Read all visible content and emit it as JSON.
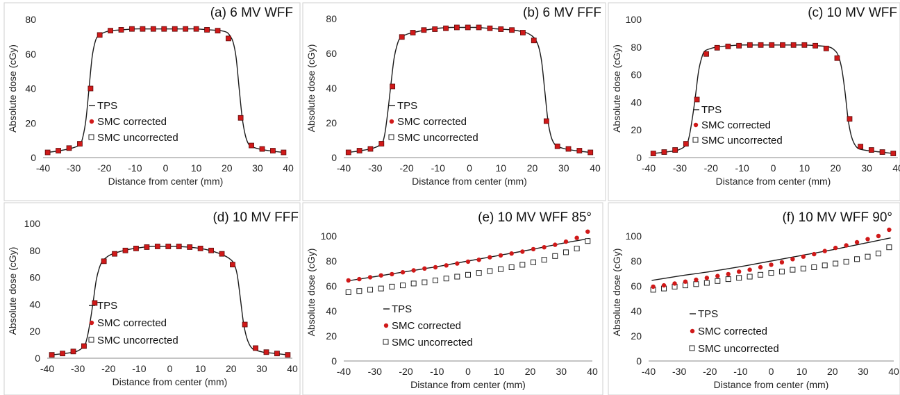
{
  "legend": {
    "entries": [
      {
        "label": "TPS",
        "marker": "line"
      },
      {
        "label": "SMC corrected",
        "marker": "circle"
      },
      {
        "label": "SMC uncorrected",
        "marker": "open-square"
      }
    ]
  },
  "colors": {
    "tps": "#1a1a1a",
    "corrected_fill": "#d01919",
    "corrected_edge": "#5a0a0a",
    "uncorrected_edge": "#222222",
    "panel_border": "#cfcfcf"
  },
  "chart_data": [
    {
      "type": "line",
      "title": "(a) 6 MV WFF",
      "xlabel": "Distance from center (mm)",
      "ylabel": "Absolute dose (cGy)",
      "xlim": [
        -40,
        40
      ],
      "ylim": [
        0,
        80
      ],
      "xticks": [
        -40,
        -30,
        -20,
        -10,
        0,
        10,
        20,
        30,
        40
      ],
      "yticks": [
        0,
        20,
        40,
        60,
        80
      ],
      "corrected_marker": "square",
      "series": [
        {
          "name": "TPS",
          "x": [
            -38.5,
            -34.5,
            -30.5,
            -28,
            -27,
            -26,
            -25,
            -24,
            -23,
            -22,
            -20,
            -18,
            -14,
            -10,
            -6,
            -2,
            2,
            6,
            10,
            14,
            18,
            20,
            21,
            22,
            23,
            24,
            25,
            26,
            27,
            28,
            30.5,
            34.5,
            38.5
          ],
          "y": [
            3,
            4,
            5.5,
            7.5,
            12,
            22,
            40,
            58,
            67,
            70.5,
            72.5,
            73.5,
            74,
            74.5,
            74.5,
            74.5,
            74.5,
            74.5,
            74.5,
            74,
            73.5,
            72.5,
            70.5,
            67,
            58,
            40,
            23,
            13,
            8,
            6.5,
            5,
            3.8,
            3
          ]
        },
        {
          "name": "SMC corrected",
          "x": [
            -38.5,
            -35,
            -31.5,
            -28,
            -24.5,
            -21.5,
            -18,
            -14.5,
            -11,
            -7.5,
            -4,
            -0.5,
            3,
            6.5,
            10,
            13.5,
            17,
            20.5,
            24.5,
            28,
            31.5,
            35,
            38.5
          ],
          "y": [
            3,
            4,
            5.5,
            8,
            40,
            71,
            73.5,
            74,
            74.5,
            74.5,
            74.5,
            74.5,
            74.5,
            74.5,
            74.5,
            74,
            73.5,
            69,
            23,
            7,
            5,
            4,
            3
          ]
        }
      ]
    },
    {
      "type": "line",
      "title": "(b) 6 MV FFF",
      "xlabel": "Distance from center (mm)",
      "ylabel": "Absolute dose (cGy)",
      "xlim": [
        -40,
        40
      ],
      "ylim": [
        0,
        80
      ],
      "xticks": [
        -40,
        -30,
        -20,
        -10,
        0,
        10,
        20,
        30,
        40
      ],
      "yticks": [
        0,
        20,
        40,
        60,
        80
      ],
      "corrected_marker": "square",
      "series": [
        {
          "name": "TPS",
          "x": [
            -38.5,
            -34.5,
            -30.5,
            -28,
            -27,
            -26,
            -25,
            -24,
            -23,
            -22,
            -20,
            -18,
            -14,
            -10,
            -6,
            -2,
            2,
            6,
            10,
            14,
            18,
            20,
            21,
            22,
            23,
            24,
            25,
            26,
            27,
            28,
            30.5,
            34.5,
            38.5
          ],
          "y": [
            3,
            4,
            5.5,
            8,
            13,
            26,
            42,
            57,
            65,
            69,
            71,
            72,
            73.5,
            74.5,
            75,
            75,
            75,
            74.5,
            74,
            73.5,
            72,
            70,
            68,
            64,
            55,
            38,
            21,
            12,
            8,
            6.5,
            5,
            3.8,
            3
          ]
        },
        {
          "name": "SMC corrected",
          "x": [
            -38.5,
            -35,
            -31.5,
            -28,
            -24.5,
            -21.5,
            -18,
            -14.5,
            -11,
            -7.5,
            -4,
            -0.5,
            3,
            6.5,
            10,
            13.5,
            17,
            20.5,
            24.5,
            28,
            31.5,
            35,
            38.5
          ],
          "y": [
            3,
            4,
            5,
            8,
            41,
            69.5,
            72,
            73.5,
            74,
            74.5,
            75,
            75,
            75,
            74.5,
            74,
            73.5,
            72,
            67.5,
            21,
            6.5,
            5,
            4,
            3
          ]
        }
      ]
    },
    {
      "type": "line",
      "title": "(c) 10 MV WFF",
      "xlabel": "Distance from center (mm)",
      "ylabel": "Absolute dose (cGy)",
      "xlim": [
        -40,
        40
      ],
      "ylim": [
        0,
        100
      ],
      "xticks": [
        -40,
        -30,
        -20,
        -10,
        0,
        10,
        20,
        30,
        40
      ],
      "yticks": [
        0,
        20,
        40,
        60,
        80,
        100
      ],
      "corrected_marker": "square",
      "series": [
        {
          "name": "TPS",
          "x": [
            -38.5,
            -34.5,
            -30.5,
            -28,
            -27,
            -26,
            -25,
            -24,
            -23,
            -22,
            -20,
            -18,
            -14,
            -10,
            -6,
            -2,
            2,
            6,
            10,
            14,
            18,
            20,
            21,
            22,
            23,
            24,
            25,
            26,
            27,
            28,
            30.5,
            34.5,
            38.5
          ],
          "y": [
            3,
            4,
            5.5,
            9,
            15,
            28,
            44,
            62,
            72,
            77,
            79,
            80,
            81,
            81.5,
            81.5,
            81.5,
            81.5,
            81.5,
            81.5,
            81,
            80,
            77,
            73,
            64,
            48,
            28,
            16,
            10,
            7,
            6,
            5,
            4,
            3
          ]
        },
        {
          "name": "SMC corrected",
          "x": [
            -38.5,
            -35,
            -31.5,
            -28,
            -24.5,
            -21.5,
            -18,
            -14.5,
            -11,
            -7.5,
            -4,
            -0.5,
            3,
            6.5,
            10,
            13.5,
            17,
            20.5,
            24.5,
            28,
            31.5,
            35,
            38.5
          ],
          "y": [
            3,
            4,
            5.5,
            10,
            42,
            75,
            79.5,
            80.5,
            81,
            81.5,
            81.5,
            81.5,
            81.5,
            81.5,
            81.5,
            81,
            79,
            72,
            28,
            8,
            5.5,
            4,
            3
          ]
        }
      ]
    },
    {
      "type": "line",
      "title": "(d) 10 MV FFF",
      "xlabel": "Distance from center (mm)",
      "ylabel": "Absolute dose (cGy)",
      "xlim": [
        -40,
        40
      ],
      "ylim": [
        0,
        100
      ],
      "xticks": [
        -40,
        -30,
        -20,
        -10,
        0,
        10,
        20,
        30,
        40
      ],
      "yticks": [
        0,
        20,
        40,
        60,
        80,
        100
      ],
      "corrected_marker": "square",
      "series": [
        {
          "name": "TPS",
          "x": [
            -38.5,
            -34.5,
            -30.5,
            -28,
            -27,
            -26,
            -25,
            -24,
            -23,
            -22,
            -20,
            -18,
            -14,
            -10,
            -6,
            -2,
            2,
            6,
            10,
            14,
            18,
            20,
            21,
            22,
            23,
            24,
            25,
            26,
            27,
            28,
            30.5,
            34.5,
            38.5
          ],
          "y": [
            2.5,
            3.5,
            5,
            9,
            15,
            27,
            42,
            58,
            67,
            72,
            76,
            78,
            80.5,
            82,
            83,
            83,
            83,
            82.5,
            81.5,
            79.5,
            76,
            73,
            70,
            62,
            45,
            27,
            16,
            10,
            7,
            6,
            4.5,
            3.5,
            2.5
          ]
        },
        {
          "name": "SMC corrected",
          "x": [
            -38.5,
            -35,
            -31.5,
            -28,
            -24.5,
            -21.5,
            -18,
            -14.5,
            -11,
            -7.5,
            -4,
            -0.5,
            3,
            6.5,
            10,
            13.5,
            17,
            20.5,
            24.5,
            28,
            31.5,
            35,
            38.5
          ],
          "y": [
            2.5,
            3.5,
            5,
            9,
            41,
            72,
            77.5,
            80,
            81.5,
            82.5,
            83,
            83,
            83,
            82.5,
            81.5,
            80,
            77.5,
            69.5,
            25,
            7.5,
            4.5,
            3.5,
            2.5
          ]
        },
        {
          "name": "SMC uncorrected",
          "x": [],
          "y": []
        }
      ]
    },
    {
      "type": "scatter",
      "title": "(e) 10 MV WFF 85°",
      "xlabel": "Distance from center (mm)",
      "ylabel": "Absolute dose (cGy)",
      "xlim": [
        -40,
        40
      ],
      "ylim": [
        0,
        110
      ],
      "xticks": [
        -40,
        -30,
        -20,
        -10,
        0,
        10,
        20,
        30,
        40
      ],
      "yticks": [
        0,
        20,
        40,
        60,
        80,
        100
      ],
      "corrected_marker": "circle",
      "series": [
        {
          "name": "TPS",
          "x": [
            -39,
            -30,
            -20,
            -10,
            0,
            10,
            20,
            30,
            39
          ],
          "y": [
            64,
            67.5,
            71.5,
            75.5,
            80,
            84.5,
            89,
            94,
            98
          ]
        },
        {
          "name": "SMC corrected",
          "x": [
            -38.5,
            -35,
            -31.5,
            -28,
            -24.5,
            -21,
            -17.5,
            -14,
            -10.5,
            -7,
            -3.5,
            0,
            3.5,
            7,
            10.5,
            14,
            17.5,
            21,
            24.5,
            28,
            31.5,
            35,
            38.5
          ],
          "y": [
            64.5,
            65.5,
            67,
            68.5,
            69.5,
            71,
            72.5,
            74,
            75,
            76.5,
            78,
            79.5,
            81,
            83,
            84.5,
            86,
            87.5,
            89.5,
            91,
            93,
            95.5,
            98.5,
            103.5
          ]
        },
        {
          "name": "SMC uncorrected",
          "x": [
            -38.5,
            -35,
            -31.5,
            -28,
            -24.5,
            -21,
            -17.5,
            -14,
            -10.5,
            -7,
            -3.5,
            0,
            3.5,
            7,
            10.5,
            14,
            17.5,
            21,
            24.5,
            28,
            31.5,
            35,
            38.5
          ],
          "y": [
            55,
            56,
            57,
            58,
            59.5,
            60.5,
            62,
            63,
            64.5,
            66,
            67.5,
            69,
            70.5,
            72,
            73.5,
            75,
            77,
            79,
            81,
            84,
            87,
            90,
            96
          ]
        }
      ]
    },
    {
      "type": "scatter",
      "title": "(f) 10 MV WFF 90°",
      "xlabel": "Distance from center (mm)",
      "ylabel": "Absolute dose (cGy)",
      "xlim": [
        -40,
        40
      ],
      "ylim": [
        0,
        110
      ],
      "xticks": [
        -40,
        -30,
        -20,
        -10,
        0,
        10,
        20,
        30,
        40
      ],
      "yticks": [
        0,
        20,
        40,
        60,
        80,
        100
      ],
      "corrected_marker": "circle",
      "series": [
        {
          "name": "TPS",
          "x": [
            -39,
            -30,
            -20,
            -10,
            0,
            10,
            20,
            30,
            39
          ],
          "y": [
            64.5,
            68,
            71.5,
            75.5,
            80,
            84.5,
            89,
            94,
            98.5
          ]
        },
        {
          "name": "SMC corrected",
          "x": [
            -38.5,
            -35,
            -31.5,
            -28,
            -24.5,
            -21,
            -17.5,
            -14,
            -10.5,
            -7,
            -3.5,
            0,
            3.5,
            7,
            10.5,
            14,
            17.5,
            21,
            24.5,
            28,
            31.5,
            35,
            38.5
          ],
          "y": [
            59.5,
            60.5,
            62,
            63.5,
            65,
            66.5,
            68,
            69.5,
            71.5,
            73,
            75,
            77,
            79,
            81.5,
            83.5,
            85.5,
            88,
            90.5,
            92.5,
            95,
            97.5,
            100,
            105
          ]
        },
        {
          "name": "SMC uncorrected",
          "x": [
            -38.5,
            -35,
            -31.5,
            -28,
            -24.5,
            -21,
            -17.5,
            -14,
            -10.5,
            -7,
            -3.5,
            0,
            3.5,
            7,
            10.5,
            14,
            17.5,
            21,
            24.5,
            28,
            31.5,
            35,
            38.5
          ],
          "y": [
            57,
            58,
            59.5,
            60.5,
            61.5,
            62.5,
            64,
            65.5,
            66.5,
            67.5,
            69,
            70.5,
            71.5,
            73,
            74,
            75,
            76.5,
            78,
            79.5,
            81.5,
            83.5,
            86,
            91
          ]
        }
      ]
    }
  ]
}
